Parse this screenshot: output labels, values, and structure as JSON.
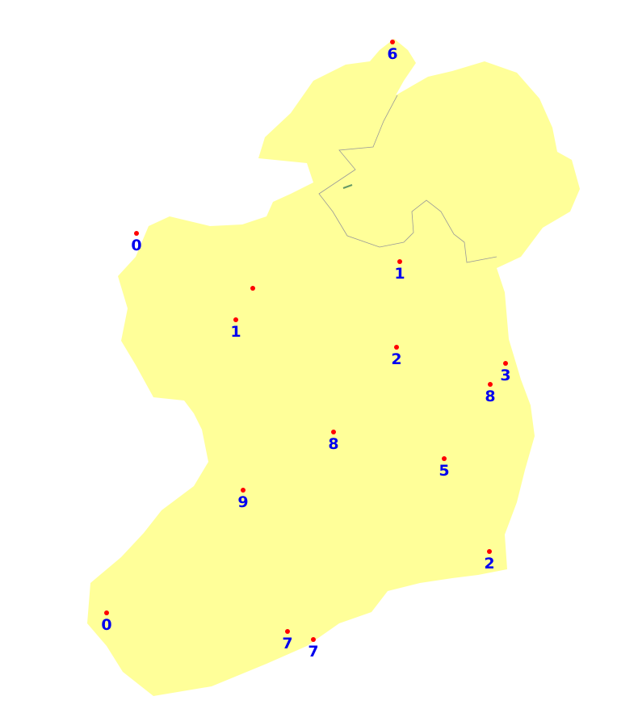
{
  "map": {
    "land_color": "#ffff99",
    "border_color": "#999999",
    "marker_color": "#ff0000",
    "label_color": "#0000ee",
    "markers": [
      {
        "label": "6"
      },
      {
        "label": "0"
      },
      {
        "label": "1"
      },
      {
        "label": ""
      },
      {
        "label": "1"
      },
      {
        "label": "2"
      },
      {
        "label": "3"
      },
      {
        "label": "8"
      },
      {
        "label": "8"
      },
      {
        "label": "5"
      },
      {
        "label": "9"
      },
      {
        "label": "2"
      },
      {
        "label": "0"
      },
      {
        "label": "7"
      },
      {
        "label": "7"
      }
    ]
  }
}
